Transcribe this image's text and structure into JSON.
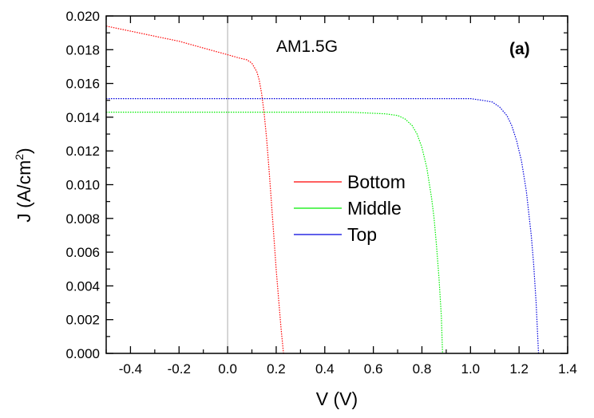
{
  "chart_data": {
    "type": "line",
    "title": "",
    "xlabel": "V (V)",
    "ylabel": "J (A/cm",
    "ylabel_superscript": "2",
    "ylabel_suffix": ")",
    "xlim": [
      -0.5,
      1.4
    ],
    "ylim": [
      0.0,
      0.02
    ],
    "x_ticks": [
      -0.4,
      -0.2,
      0.0,
      0.2,
      0.4,
      0.6,
      0.8,
      1.0,
      1.2,
      1.4
    ],
    "x_tick_labels": [
      "-0.4",
      "-0.2",
      "0.0",
      "0.2",
      "0.4",
      "0.6",
      "0.8",
      "1.0",
      "1.2",
      "1.4"
    ],
    "y_ticks": [
      0.0,
      0.002,
      0.004,
      0.006,
      0.008,
      0.01,
      0.012,
      0.014,
      0.016,
      0.018,
      0.02
    ],
    "y_tick_labels": [
      "0.000",
      "0.002",
      "0.004",
      "0.006",
      "0.008",
      "0.010",
      "0.012",
      "0.014",
      "0.016",
      "0.018",
      "0.020"
    ],
    "grid": false,
    "reference_line_x": 0.0,
    "annotations": [
      "AM1.5G",
      "(a)"
    ],
    "legend_position": "center",
    "series": [
      {
        "name": "Bottom",
        "color": "#ff0000",
        "x": [
          -0.5,
          -0.4,
          -0.3,
          -0.2,
          -0.1,
          0.0,
          0.05,
          0.08,
          0.1,
          0.12,
          0.13,
          0.14,
          0.15,
          0.16,
          0.17,
          0.18,
          0.19,
          0.2,
          0.21,
          0.22,
          0.23
        ],
        "y": [
          0.0194,
          0.0191,
          0.0188,
          0.0185,
          0.0181,
          0.0177,
          0.0175,
          0.0174,
          0.0172,
          0.0167,
          0.0162,
          0.0154,
          0.0143,
          0.0128,
          0.011,
          0.009,
          0.007,
          0.005,
          0.0032,
          0.0015,
          0.0
        ]
      },
      {
        "name": "Middle",
        "color": "#00ee00",
        "x": [
          -0.5,
          0.0,
          0.5,
          0.65,
          0.7,
          0.73,
          0.76,
          0.78,
          0.8,
          0.82,
          0.84,
          0.85,
          0.86,
          0.87,
          0.88,
          0.885
        ],
        "y": [
          0.0143,
          0.0143,
          0.0143,
          0.0142,
          0.0141,
          0.0139,
          0.0135,
          0.013,
          0.0122,
          0.011,
          0.0092,
          0.008,
          0.0064,
          0.0045,
          0.0022,
          0.0
        ]
      },
      {
        "name": "Top",
        "color": "#0000dd",
        "x": [
          -0.5,
          0.0,
          0.5,
          1.0,
          1.05,
          1.09,
          1.12,
          1.15,
          1.17,
          1.19,
          1.21,
          1.23,
          1.25,
          1.26,
          1.27,
          1.28
        ],
        "y": [
          0.0151,
          0.0151,
          0.0151,
          0.0151,
          0.015,
          0.0149,
          0.0146,
          0.0141,
          0.0135,
          0.0126,
          0.0114,
          0.0096,
          0.007,
          0.0053,
          0.003,
          0.0
        ]
      }
    ]
  }
}
